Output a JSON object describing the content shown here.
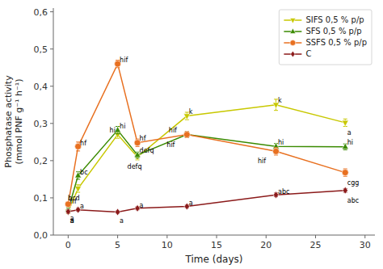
{
  "chart_data": {
    "type": "line",
    "xlabel": "Time (days)",
    "ylabel": "Phosphatase activity\n(mmol PNF g⁻¹ h⁻¹)",
    "xlim": [
      -1.5,
      31
    ],
    "ylim": [
      0.0,
      0.61
    ],
    "xticks": [
      0,
      5,
      10,
      15,
      20,
      25,
      30
    ],
    "yticks": [
      {
        "value": 0.0,
        "label": "0,0"
      },
      {
        "value": 0.1,
        "label": "0,1"
      },
      {
        "value": 0.2,
        "label": "0,2"
      },
      {
        "value": 0.3,
        "label": "0,3"
      },
      {
        "value": 0.4,
        "label": "0,4"
      },
      {
        "value": 0.5,
        "label": "0,5"
      },
      {
        "value": 0.6,
        "label": "0,6"
      }
    ],
    "grid": false,
    "legend": "upper right",
    "series": [
      {
        "name": "SIFS 0,5 % p/p",
        "color": "#c8c800",
        "marker": "triangle-down",
        "x": [
          0,
          1,
          5,
          7,
          12,
          21,
          28
        ],
        "values": [
          0.063,
          0.125,
          0.27,
          0.21,
          0.32,
          0.35,
          0.302
        ],
        "errors": [
          0.005,
          0.01,
          0.01,
          0.008,
          0.01,
          0.015,
          0.01
        ],
        "annotations": [
          "a",
          "bcd",
          "hi",
          "defq",
          "k",
          "k",
          "a"
        ]
      },
      {
        "name": "SFS 0,5 % p/p",
        "color": "#3a8a00",
        "marker": "triangle-up",
        "x": [
          0,
          1,
          5,
          7,
          12,
          21,
          28
        ],
        "values": [
          0.068,
          0.16,
          0.282,
          0.215,
          0.27,
          0.238,
          0.237
        ],
        "errors": [
          0.005,
          0.01,
          0.01,
          0.008,
          0.008,
          0.008,
          0.008
        ],
        "annotations": [
          "a",
          "bc",
          "hi",
          "defq",
          "hif",
          "hi",
          "hi"
        ]
      },
      {
        "name": "SSFS 0,5 % p/p",
        "color": "#e87020",
        "marker": "circle",
        "x": [
          0,
          1,
          5,
          7,
          12,
          21,
          28
        ],
        "values": [
          0.083,
          0.238,
          0.46,
          0.248,
          0.27,
          0.225,
          0.168
        ],
        "errors": [
          0.005,
          0.012,
          0.01,
          0.01,
          0.008,
          0.01,
          0.01
        ],
        "annotations": [
          "hf",
          "hf",
          "hif",
          "hf",
          "hif",
          "hif",
          "cgg"
        ]
      },
      {
        "name": "C",
        "color": "#8b1a1a",
        "marker": "diamond",
        "x": [
          0,
          1,
          5,
          7,
          12,
          21,
          28
        ],
        "values": [
          0.063,
          0.068,
          0.062,
          0.072,
          0.077,
          0.108,
          0.12
        ],
        "errors": [
          0.004,
          0.004,
          0.003,
          0.004,
          0.004,
          0.005,
          0.005
        ],
        "annotations": [
          "a",
          "a",
          "a",
          "a",
          "a",
          "abc",
          "abc"
        ]
      }
    ]
  }
}
